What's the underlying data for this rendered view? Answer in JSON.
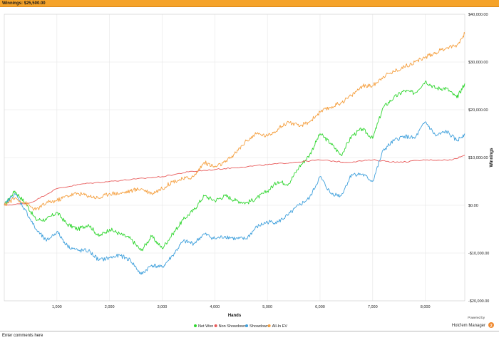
{
  "window": {
    "title": "Winnings: $25,500.00"
  },
  "comments": {
    "placeholder": "Enter comments here"
  },
  "branding": {
    "powered_by": "Powered by",
    "product": "Hold'em Manager",
    "logo_number": "2"
  },
  "colors": {
    "net_won": "#2fd62f",
    "non_showdown": "#e85a5a",
    "showdown": "#3fa0dc",
    "all_in_ev": "#f5a040",
    "grid": "#e6e6e6",
    "brand_orange": "#f08a30"
  },
  "chart_data": {
    "type": "line",
    "xlabel": "Hands",
    "ylabel": "Winnings",
    "xlim": [
      0,
      8750
    ],
    "ylim": [
      -20000,
      40000
    ],
    "x_ticks": [
      1000,
      2000,
      3000,
      4000,
      5000,
      6000,
      7000,
      8000
    ],
    "x_tick_labels": [
      "1,000",
      "2,000",
      "3,000",
      "4,000",
      "5,000",
      "6,000",
      "7,000",
      "8,000"
    ],
    "y_ticks": [
      40000,
      30000,
      20000,
      10000,
      0,
      -10000,
      -20000
    ],
    "y_tick_labels": [
      "$40,000.00",
      "$30,000.00",
      "$20,000.00",
      "$10,000.00",
      "$0.00",
      "-$10,000.00",
      "-$20,000.00"
    ],
    "grid": true,
    "legend_position": "bottom-center",
    "series": [
      {
        "name": "Net Won",
        "color": "#2fd62f",
        "x": [
          0,
          200,
          400,
          600,
          800,
          1000,
          1200,
          1400,
          1600,
          1800,
          2000,
          2200,
          2400,
          2600,
          2800,
          3000,
          3200,
          3400,
          3600,
          3800,
          4000,
          4200,
          4400,
          4600,
          4800,
          5000,
          5200,
          5400,
          5600,
          5800,
          6000,
          6200,
          6400,
          6600,
          6800,
          7000,
          7200,
          7400,
          7600,
          7800,
          8000,
          8200,
          8400,
          8600,
          8750
        ],
        "y": [
          0,
          3000,
          500,
          -3000,
          -3000,
          -1500,
          -4000,
          -5000,
          -4000,
          -6500,
          -5000,
          -6000,
          -7000,
          -9500,
          -6500,
          -9000,
          -6000,
          -3000,
          -1000,
          2000,
          1000,
          2000,
          1000,
          500,
          1500,
          3000,
          5000,
          4500,
          8000,
          10500,
          15000,
          13000,
          10500,
          14500,
          16000,
          14000,
          20500,
          22500,
          24000,
          23500,
          26000,
          24500,
          24500,
          22500,
          25500
        ]
      },
      {
        "name": "Non Showdown",
        "color": "#e85a5a",
        "x": [
          0,
          500,
          1000,
          1500,
          2000,
          2500,
          3000,
          3500,
          4000,
          4500,
          5000,
          5500,
          6000,
          6500,
          7000,
          7500,
          8000,
          8500,
          8750
        ],
        "y": [
          0,
          500,
          3500,
          4500,
          5000,
          5500,
          6000,
          7000,
          7500,
          8000,
          8500,
          9000,
          9500,
          9000,
          9500,
          9000,
          9500,
          9500,
          10500
        ]
      },
      {
        "name": "Showdown",
        "color": "#3fa0dc",
        "x": [
          0,
          200,
          400,
          600,
          800,
          1000,
          1200,
          1400,
          1600,
          1800,
          2000,
          2200,
          2400,
          2600,
          2800,
          3000,
          3200,
          3400,
          3600,
          3800,
          4000,
          4200,
          4400,
          4600,
          4800,
          5000,
          5200,
          5400,
          5600,
          5800,
          6000,
          6200,
          6400,
          6600,
          6800,
          7000,
          7200,
          7400,
          7600,
          7800,
          8000,
          8200,
          8400,
          8600,
          8750
        ],
        "y": [
          0,
          2500,
          -1000,
          -5000,
          -7500,
          -5500,
          -8500,
          -9500,
          -9500,
          -11500,
          -11000,
          -10500,
          -11500,
          -14500,
          -12500,
          -13000,
          -10500,
          -7500,
          -8000,
          -6000,
          -7000,
          -6500,
          -7000,
          -7000,
          -4500,
          -3500,
          -3500,
          -2000,
          0,
          1500,
          6000,
          2500,
          2000,
          6500,
          6500,
          5000,
          11500,
          13500,
          14500,
          14000,
          17500,
          14500,
          15500,
          13500,
          15000
        ]
      },
      {
        "name": "All-In EV",
        "color": "#f5a040",
        "x": [
          0,
          200,
          400,
          600,
          800,
          1000,
          1200,
          1400,
          1600,
          1800,
          2000,
          2200,
          2400,
          2600,
          2800,
          3000,
          3200,
          3400,
          3600,
          3800,
          4000,
          4200,
          4400,
          4600,
          4800,
          5000,
          5200,
          5400,
          5600,
          5800,
          6000,
          6200,
          6400,
          6600,
          6800,
          7000,
          7200,
          7400,
          7600,
          7800,
          8000,
          8200,
          8400,
          8600,
          8750
        ],
        "y": [
          0,
          1500,
          500,
          -1000,
          500,
          1000,
          2000,
          2500,
          2000,
          1500,
          2500,
          2500,
          3000,
          3500,
          2500,
          3500,
          5000,
          5500,
          6000,
          9000,
          8000,
          9000,
          11000,
          13500,
          15000,
          14500,
          16000,
          17500,
          16500,
          17500,
          19500,
          20500,
          21500,
          23000,
          25000,
          25000,
          27000,
          28000,
          29000,
          30000,
          31000,
          32000,
          33000,
          33500,
          36000
        ]
      }
    ]
  }
}
